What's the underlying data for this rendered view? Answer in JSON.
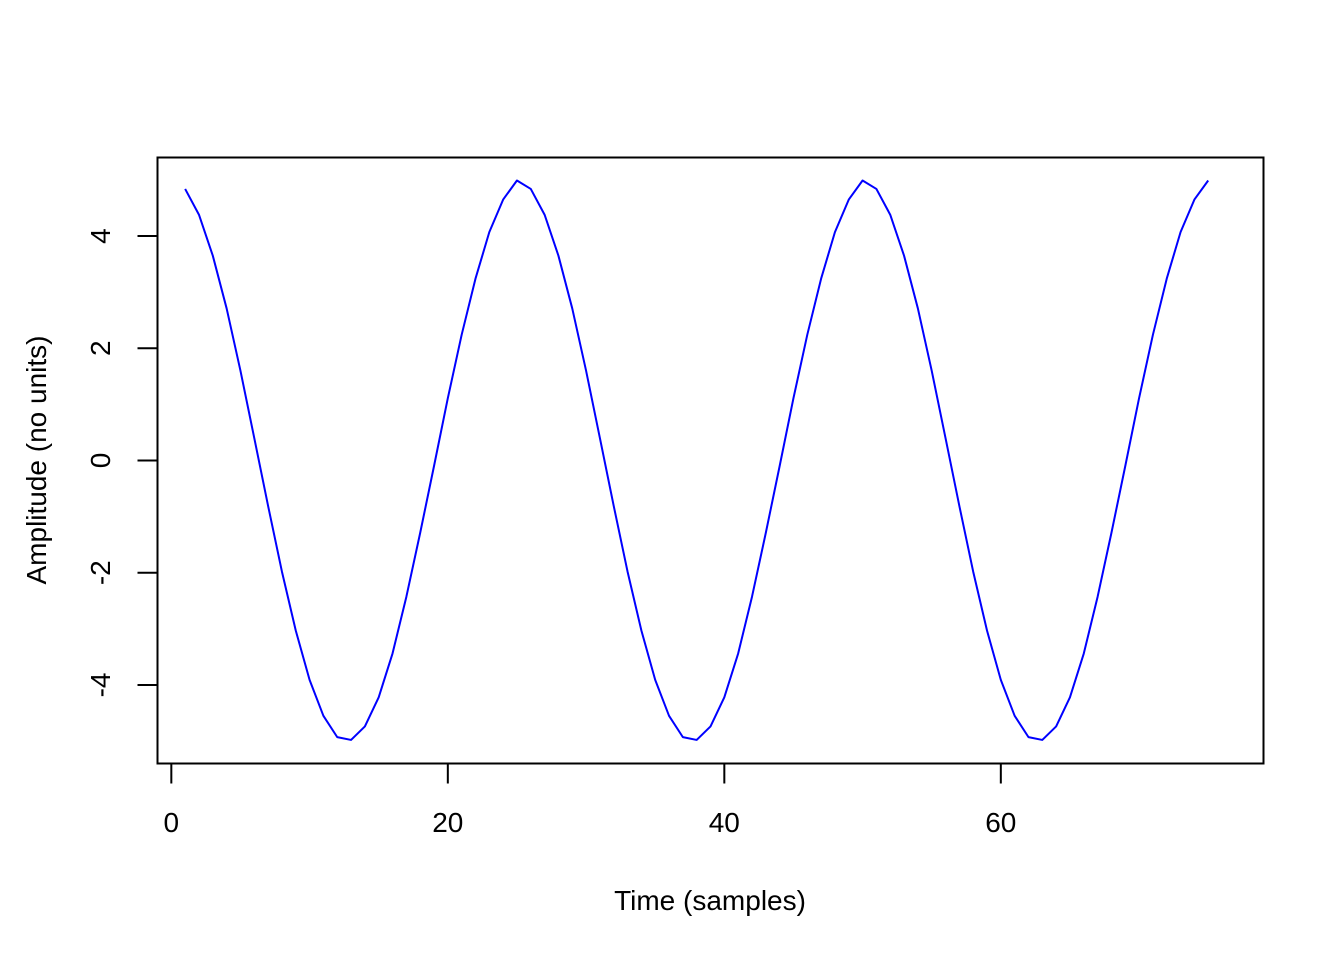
{
  "chart_data": {
    "type": "line",
    "title": "",
    "xlabel": "Time (samples)",
    "ylabel": "Amplitude (no units)",
    "xlim": [
      -1,
      79
    ],
    "ylim": [
      -5.4,
      5.4
    ],
    "xticks": [
      0,
      20,
      40,
      60
    ],
    "yticks": [
      -4,
      -2,
      0,
      2,
      4
    ],
    "xtick_labels": [
      "0",
      "20",
      "40",
      "60"
    ],
    "ytick_labels": [
      "-4",
      "-2",
      "0",
      "2",
      "4"
    ],
    "grid": false,
    "legend": "none",
    "series": [
      {
        "color": "#0000ff",
        "x": [
          1,
          2,
          3,
          4,
          5,
          6,
          7,
          8,
          9,
          10,
          11,
          12,
          13,
          14,
          15,
          16,
          17,
          18,
          19,
          20,
          21,
          22,
          23,
          24,
          25,
          26,
          27,
          28,
          29,
          30,
          31,
          32,
          33,
          34,
          35,
          36,
          37,
          38,
          39,
          40,
          41,
          42,
          43,
          44,
          45,
          46,
          47,
          48,
          49,
          50,
          51,
          52,
          53,
          54,
          55,
          56,
          57,
          58,
          59,
          60,
          61,
          62,
          63,
          64,
          65,
          66,
          67,
          68,
          69,
          70,
          71,
          72,
          73,
          74,
          75
        ],
        "y": [
          4.84,
          4.38,
          3.65,
          2.71,
          1.6,
          0.4,
          -0.81,
          -1.98,
          -3.03,
          -3.91,
          -4.55,
          -4.93,
          -4.98,
          -4.74,
          -4.22,
          -3.44,
          -2.43,
          -1.29,
          -0.1,
          1.11,
          2.24,
          3.24,
          4.07,
          4.65,
          4.99,
          4.84,
          4.38,
          3.65,
          2.71,
          1.6,
          0.4,
          -0.81,
          -1.98,
          -3.03,
          -3.91,
          -4.55,
          -4.93,
          -4.98,
          -4.74,
          -4.22,
          -3.44,
          -2.43,
          -1.29,
          -0.1,
          1.11,
          2.24,
          3.24,
          4.07,
          4.65,
          4.99,
          4.84,
          4.38,
          3.65,
          2.71,
          1.6,
          0.4,
          -0.81,
          -1.98,
          -3.03,
          -3.91,
          -4.55,
          -4.93,
          -4.98,
          -4.74,
          -4.22,
          -3.44,
          -2.43,
          -1.29,
          -0.1,
          1.11,
          2.24,
          3.24,
          4.07,
          4.65,
          4.99
        ]
      }
    ]
  }
}
